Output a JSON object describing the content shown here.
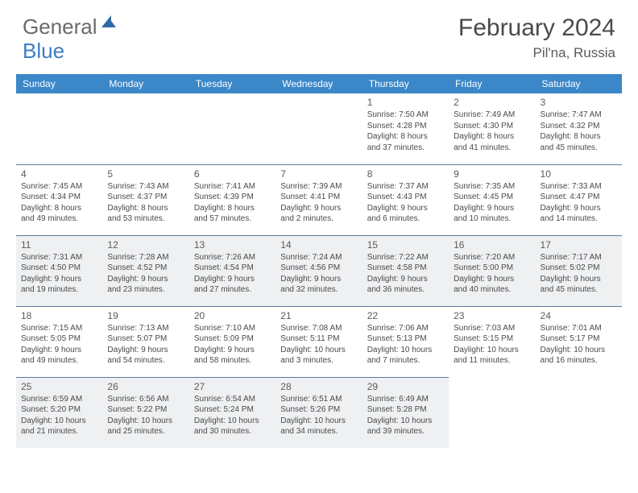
{
  "logo": {
    "text_gray": "General",
    "text_blue": "Blue"
  },
  "title": "February 2024",
  "location": "Pil'na, Russia",
  "colors": {
    "header_bg": "#3b87c8",
    "header_text": "#ffffff",
    "alt_row_bg": "#eef0f2",
    "border": "#5a7a9a",
    "body_text": "#4a4a4a",
    "logo_gray": "#6a6a6a",
    "logo_blue": "#3b7fc4"
  },
  "weekdays": [
    "Sunday",
    "Monday",
    "Tuesday",
    "Wednesday",
    "Thursday",
    "Friday",
    "Saturday"
  ],
  "weeks": [
    [
      null,
      null,
      null,
      null,
      {
        "n": "1",
        "sr": "Sunrise: 7:50 AM",
        "ss": "Sunset: 4:28 PM",
        "dl1": "Daylight: 8 hours",
        "dl2": "and 37 minutes."
      },
      {
        "n": "2",
        "sr": "Sunrise: 7:49 AM",
        "ss": "Sunset: 4:30 PM",
        "dl1": "Daylight: 8 hours",
        "dl2": "and 41 minutes."
      },
      {
        "n": "3",
        "sr": "Sunrise: 7:47 AM",
        "ss": "Sunset: 4:32 PM",
        "dl1": "Daylight: 8 hours",
        "dl2": "and 45 minutes."
      }
    ],
    [
      {
        "n": "4",
        "sr": "Sunrise: 7:45 AM",
        "ss": "Sunset: 4:34 PM",
        "dl1": "Daylight: 8 hours",
        "dl2": "and 49 minutes."
      },
      {
        "n": "5",
        "sr": "Sunrise: 7:43 AM",
        "ss": "Sunset: 4:37 PM",
        "dl1": "Daylight: 8 hours",
        "dl2": "and 53 minutes."
      },
      {
        "n": "6",
        "sr": "Sunrise: 7:41 AM",
        "ss": "Sunset: 4:39 PM",
        "dl1": "Daylight: 8 hours",
        "dl2": "and 57 minutes."
      },
      {
        "n": "7",
        "sr": "Sunrise: 7:39 AM",
        "ss": "Sunset: 4:41 PM",
        "dl1": "Daylight: 9 hours",
        "dl2": "and 2 minutes."
      },
      {
        "n": "8",
        "sr": "Sunrise: 7:37 AM",
        "ss": "Sunset: 4:43 PM",
        "dl1": "Daylight: 9 hours",
        "dl2": "and 6 minutes."
      },
      {
        "n": "9",
        "sr": "Sunrise: 7:35 AM",
        "ss": "Sunset: 4:45 PM",
        "dl1": "Daylight: 9 hours",
        "dl2": "and 10 minutes."
      },
      {
        "n": "10",
        "sr": "Sunrise: 7:33 AM",
        "ss": "Sunset: 4:47 PM",
        "dl1": "Daylight: 9 hours",
        "dl2": "and 14 minutes."
      }
    ],
    [
      {
        "n": "11",
        "sr": "Sunrise: 7:31 AM",
        "ss": "Sunset: 4:50 PM",
        "dl1": "Daylight: 9 hours",
        "dl2": "and 19 minutes."
      },
      {
        "n": "12",
        "sr": "Sunrise: 7:28 AM",
        "ss": "Sunset: 4:52 PM",
        "dl1": "Daylight: 9 hours",
        "dl2": "and 23 minutes."
      },
      {
        "n": "13",
        "sr": "Sunrise: 7:26 AM",
        "ss": "Sunset: 4:54 PM",
        "dl1": "Daylight: 9 hours",
        "dl2": "and 27 minutes."
      },
      {
        "n": "14",
        "sr": "Sunrise: 7:24 AM",
        "ss": "Sunset: 4:56 PM",
        "dl1": "Daylight: 9 hours",
        "dl2": "and 32 minutes."
      },
      {
        "n": "15",
        "sr": "Sunrise: 7:22 AM",
        "ss": "Sunset: 4:58 PM",
        "dl1": "Daylight: 9 hours",
        "dl2": "and 36 minutes."
      },
      {
        "n": "16",
        "sr": "Sunrise: 7:20 AM",
        "ss": "Sunset: 5:00 PM",
        "dl1": "Daylight: 9 hours",
        "dl2": "and 40 minutes."
      },
      {
        "n": "17",
        "sr": "Sunrise: 7:17 AM",
        "ss": "Sunset: 5:02 PM",
        "dl1": "Daylight: 9 hours",
        "dl2": "and 45 minutes."
      }
    ],
    [
      {
        "n": "18",
        "sr": "Sunrise: 7:15 AM",
        "ss": "Sunset: 5:05 PM",
        "dl1": "Daylight: 9 hours",
        "dl2": "and 49 minutes."
      },
      {
        "n": "19",
        "sr": "Sunrise: 7:13 AM",
        "ss": "Sunset: 5:07 PM",
        "dl1": "Daylight: 9 hours",
        "dl2": "and 54 minutes."
      },
      {
        "n": "20",
        "sr": "Sunrise: 7:10 AM",
        "ss": "Sunset: 5:09 PM",
        "dl1": "Daylight: 9 hours",
        "dl2": "and 58 minutes."
      },
      {
        "n": "21",
        "sr": "Sunrise: 7:08 AM",
        "ss": "Sunset: 5:11 PM",
        "dl1": "Daylight: 10 hours",
        "dl2": "and 3 minutes."
      },
      {
        "n": "22",
        "sr": "Sunrise: 7:06 AM",
        "ss": "Sunset: 5:13 PM",
        "dl1": "Daylight: 10 hours",
        "dl2": "and 7 minutes."
      },
      {
        "n": "23",
        "sr": "Sunrise: 7:03 AM",
        "ss": "Sunset: 5:15 PM",
        "dl1": "Daylight: 10 hours",
        "dl2": "and 11 minutes."
      },
      {
        "n": "24",
        "sr": "Sunrise: 7:01 AM",
        "ss": "Sunset: 5:17 PM",
        "dl1": "Daylight: 10 hours",
        "dl2": "and 16 minutes."
      }
    ],
    [
      {
        "n": "25",
        "sr": "Sunrise: 6:59 AM",
        "ss": "Sunset: 5:20 PM",
        "dl1": "Daylight: 10 hours",
        "dl2": "and 21 minutes."
      },
      {
        "n": "26",
        "sr": "Sunrise: 6:56 AM",
        "ss": "Sunset: 5:22 PM",
        "dl1": "Daylight: 10 hours",
        "dl2": "and 25 minutes."
      },
      {
        "n": "27",
        "sr": "Sunrise: 6:54 AM",
        "ss": "Sunset: 5:24 PM",
        "dl1": "Daylight: 10 hours",
        "dl2": "and 30 minutes."
      },
      {
        "n": "28",
        "sr": "Sunrise: 6:51 AM",
        "ss": "Sunset: 5:26 PM",
        "dl1": "Daylight: 10 hours",
        "dl2": "and 34 minutes."
      },
      {
        "n": "29",
        "sr": "Sunrise: 6:49 AM",
        "ss": "Sunset: 5:28 PM",
        "dl1": "Daylight: 10 hours",
        "dl2": "and 39 minutes."
      },
      null,
      null
    ]
  ]
}
